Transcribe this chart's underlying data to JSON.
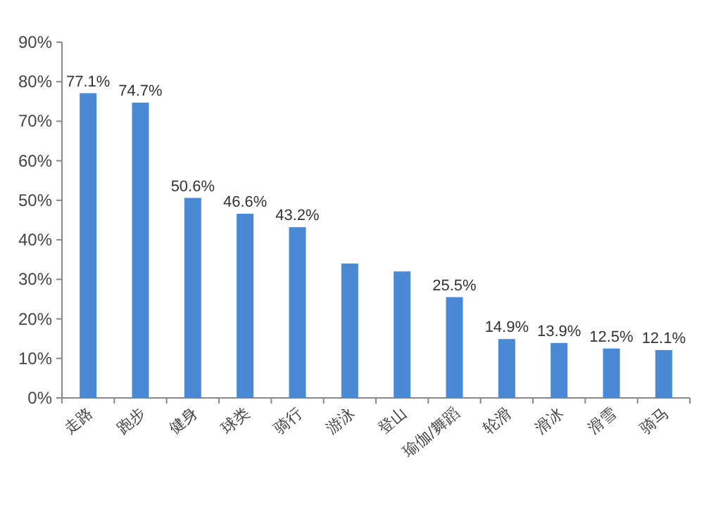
{
  "chart_data": {
    "type": "bar",
    "categories": [
      "走路",
      "跑步",
      "健身",
      "球类",
      "骑行",
      "游泳",
      "登山",
      "瑜伽/舞蹈",
      "轮滑",
      "滑冰",
      "滑雪",
      "骑马"
    ],
    "values": [
      77.1,
      74.7,
      50.6,
      46.6,
      43.2,
      34,
      32,
      25.5,
      14.9,
      13.9,
      12.5,
      12.1
    ],
    "value_labels": [
      "77.1%",
      "74.7%",
      "50.6%",
      "46.6%",
      "43.2%",
      null,
      null,
      "25.5%",
      "14.9%",
      "13.9%",
      "12.5%",
      "12.1%"
    ],
    "color": "#4a8ad4",
    "ylim": [
      0,
      90
    ],
    "yticks": [
      {
        "value": 0,
        "label": "0%"
      },
      {
        "value": 10,
        "label": "10%"
      },
      {
        "value": 20,
        "label": "20%"
      },
      {
        "value": 30,
        "label": "30%"
      },
      {
        "value": 40,
        "label": "40%"
      },
      {
        "value": 50,
        "label": "50%"
      },
      {
        "value": 60,
        "label": "60%"
      },
      {
        "value": 70,
        "label": "70%"
      },
      {
        "value": 80,
        "label": "80%"
      },
      {
        "value": 90,
        "label": "90%"
      }
    ],
    "grid": false
  }
}
